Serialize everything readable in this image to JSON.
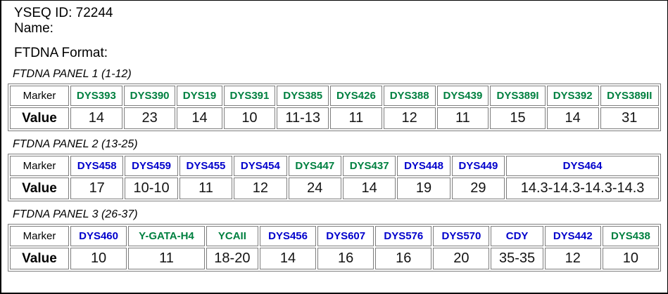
{
  "header": {
    "yseq_id": "YSEQ ID: 72244",
    "name_label": "Name:",
    "format_label": "FTDNA Format:"
  },
  "table_header": {
    "marker": "Marker",
    "value": "Value"
  },
  "colors": {
    "green": "#008040",
    "blue": "#0000CC",
    "border": "#7d7d7d"
  },
  "panels": [
    {
      "title": "FTDNA PANEL 1 (1-12)",
      "markers": [
        {
          "name": "DYS393",
          "color": "green",
          "value": "14"
        },
        {
          "name": "DYS390",
          "color": "green",
          "value": "23"
        },
        {
          "name": "DYS19",
          "color": "green",
          "value": "14"
        },
        {
          "name": "DYS391",
          "color": "green",
          "value": "10"
        },
        {
          "name": "DYS385",
          "color": "green",
          "value": "11-13"
        },
        {
          "name": "DYS426",
          "color": "green",
          "value": "11"
        },
        {
          "name": "DYS388",
          "color": "green",
          "value": "12"
        },
        {
          "name": "DYS439",
          "color": "green",
          "value": "11"
        },
        {
          "name": "DYS389I",
          "color": "green",
          "value": "15"
        },
        {
          "name": "DYS392",
          "color": "green",
          "value": "14"
        },
        {
          "name": "DYS389II",
          "color": "green",
          "value": "31"
        }
      ]
    },
    {
      "title": "FTDNA PANEL 2 (13-25)",
      "markers": [
        {
          "name": "DYS458",
          "color": "blue",
          "value": "17"
        },
        {
          "name": "DYS459",
          "color": "blue",
          "value": "10-10"
        },
        {
          "name": "DYS455",
          "color": "blue",
          "value": "11"
        },
        {
          "name": "DYS454",
          "color": "blue",
          "value": "12"
        },
        {
          "name": "DYS447",
          "color": "green",
          "value": "24"
        },
        {
          "name": "DYS437",
          "color": "green",
          "value": "14"
        },
        {
          "name": "DYS448",
          "color": "blue",
          "value": "19"
        },
        {
          "name": "DYS449",
          "color": "blue",
          "value": "29"
        },
        {
          "name": "DYS464",
          "color": "blue",
          "value": "14.3-14.3-14.3-14.3"
        }
      ]
    },
    {
      "title": "FTDNA PANEL 3 (26-37)",
      "markers": [
        {
          "name": "DYS460",
          "color": "blue",
          "value": "10"
        },
        {
          "name": "Y-GATA-H4",
          "color": "green",
          "value": "11"
        },
        {
          "name": "YCAII",
          "color": "green",
          "value": "18-20"
        },
        {
          "name": "DYS456",
          "color": "blue",
          "value": "14"
        },
        {
          "name": "DYS607",
          "color": "blue",
          "value": "16"
        },
        {
          "name": "DYS576",
          "color": "blue",
          "value": "16"
        },
        {
          "name": "DYS570",
          "color": "blue",
          "value": "20"
        },
        {
          "name": "CDY",
          "color": "blue",
          "value": "35-35"
        },
        {
          "name": "DYS442",
          "color": "blue",
          "value": "12"
        },
        {
          "name": "DYS438",
          "color": "green",
          "value": "10"
        }
      ]
    }
  ]
}
